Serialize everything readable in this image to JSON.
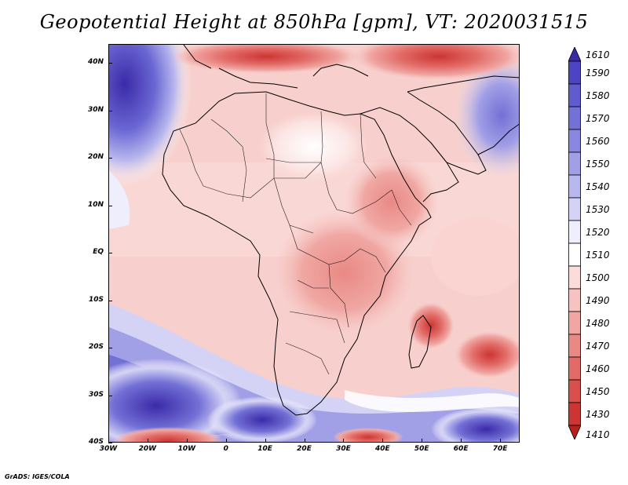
{
  "title": "Geopotential Height at 850hPa [gpm], VT: 2020031515",
  "credit": "GrADS: IGES/COLA",
  "map": {
    "lat_labels": [
      "40N",
      "30N",
      "20N",
      "10N",
      "EQ",
      "10S",
      "20S",
      "30S",
      "40S"
    ],
    "lon_labels": [
      "30W",
      "20W",
      "10W",
      "0",
      "10E",
      "20E",
      "30E",
      "40E",
      "50E",
      "60E",
      "70E"
    ],
    "lat_range": [
      -40,
      44
    ],
    "lon_range": [
      -30,
      75
    ]
  },
  "colorbar": {
    "levels": [
      "1610",
      "1590",
      "1580",
      "1570",
      "1560",
      "1550",
      "1540",
      "1530",
      "1520",
      "1510",
      "1500",
      "1490",
      "1480",
      "1470",
      "1460",
      "1450",
      "1430",
      "1410"
    ],
    "colors": [
      "#3b2aa8",
      "#4c44c2",
      "#5e5ccf",
      "#7370d6",
      "#8a87de",
      "#a19fe6",
      "#b9b8ee",
      "#d4d3f5",
      "#eeeefc",
      "#ffffff",
      "#fbdcda",
      "#f6c3c0",
      "#f0a7a3",
      "#e98985",
      "#e26b67",
      "#d94f4c",
      "#cc3533",
      "#b81f1f"
    ]
  }
}
